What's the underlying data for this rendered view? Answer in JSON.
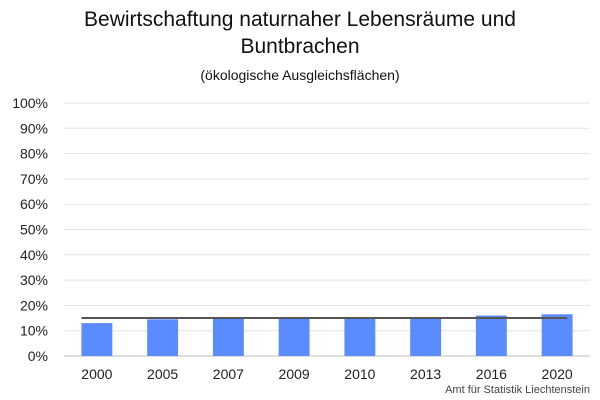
{
  "chart_data": {
    "type": "bar",
    "title_line1": "Bewirtschaftung naturnaher Lebensräume und",
    "title_line2": "Buntbrachen",
    "subtitle": "(ökologische Ausgleichsflächen)",
    "xlabel": "",
    "ylabel": "",
    "categories": [
      "2000",
      "2005",
      "2007",
      "2009",
      "2010",
      "2013",
      "2016",
      "2020"
    ],
    "series": [
      {
        "values": [
          13,
          14.5,
          15,
          15,
          15,
          15,
          16,
          16.5
        ],
        "color": "#5b8cff",
        "kind": "bar"
      }
    ],
    "reference_line": {
      "value": 15,
      "color": "#555555",
      "kind": "line"
    },
    "ylim": [
      0,
      100
    ],
    "yticks": [
      0,
      10,
      20,
      30,
      40,
      50,
      60,
      70,
      80,
      90,
      100
    ],
    "ytick_labels": [
      "0%",
      "10%",
      "20%",
      "30%",
      "40%",
      "50%",
      "60%",
      "70%",
      "80%",
      "90%",
      "100%"
    ],
    "grid": true,
    "legend": "none"
  },
  "credit": "Amt für Statistik Liechtenstein"
}
